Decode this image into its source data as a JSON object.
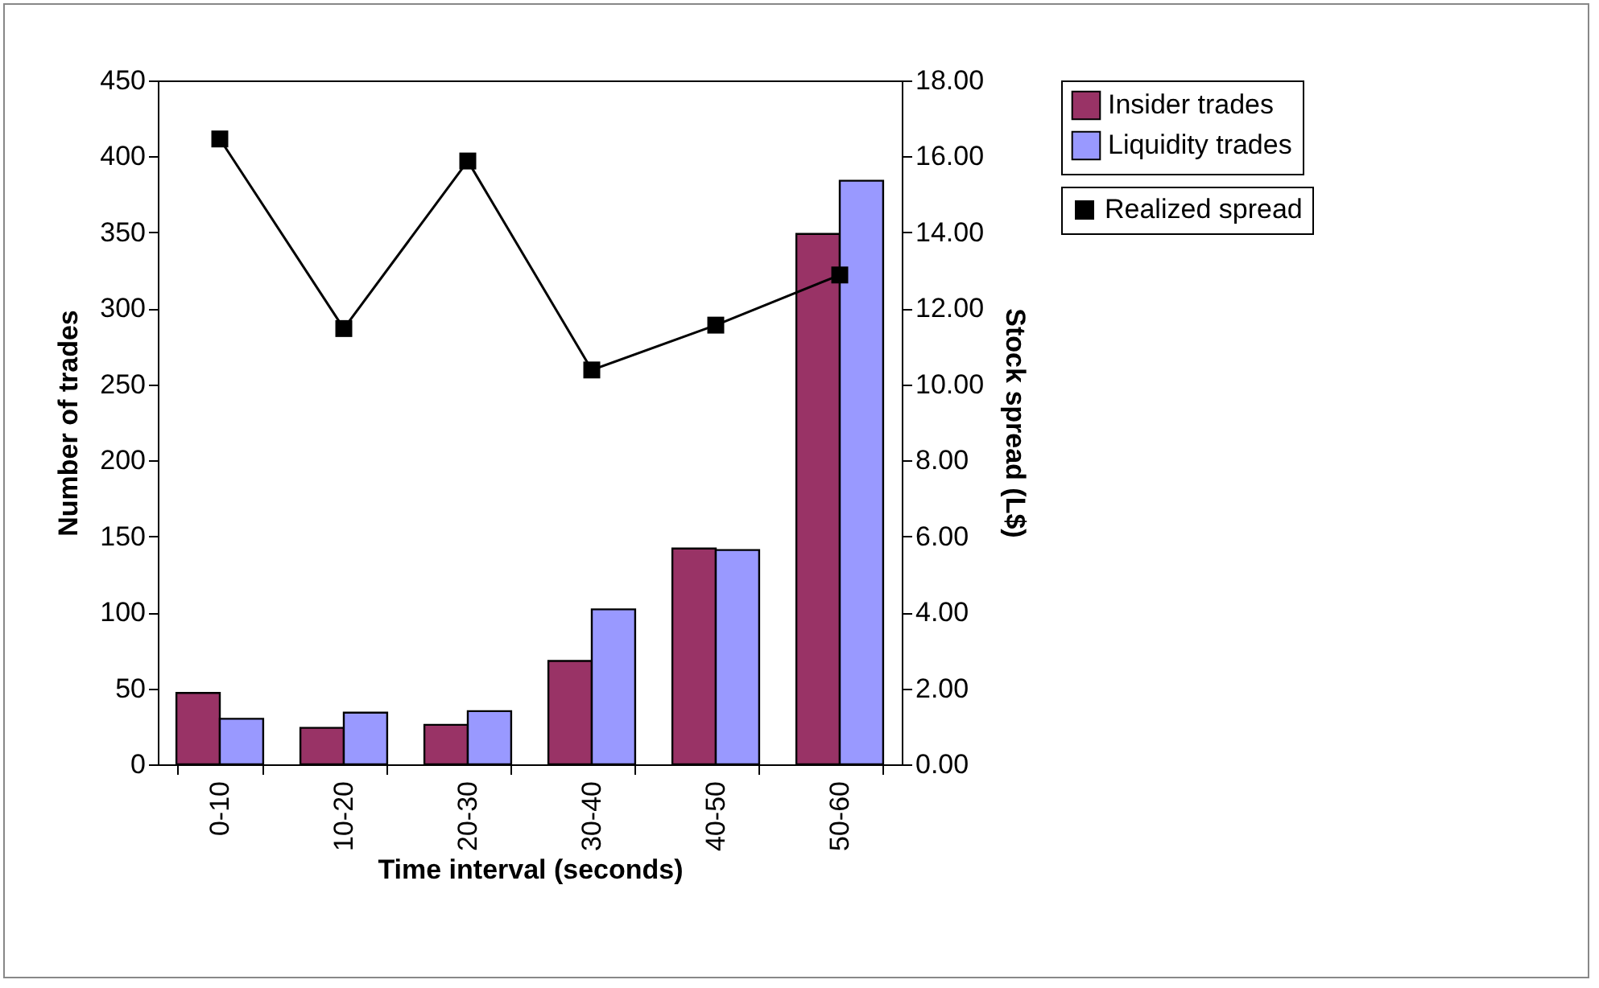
{
  "chart_data": {
    "type": "bar",
    "xlabel": "Time interval (seconds)",
    "ylabel": "Number of trades",
    "y2label": "Stock spread (L$)",
    "categories": [
      "0-10",
      "10-20",
      "20-30",
      "30-40",
      "40-50",
      "50-60"
    ],
    "series": [
      {
        "name": "Insider trades",
        "color": "#993366",
        "values": [
          47,
          24,
          26,
          68,
          142,
          349
        ]
      },
      {
        "name": "Liquidity trades",
        "color": "#9999ff",
        "values": [
          30,
          34,
          35,
          102,
          141,
          384
        ]
      },
      {
        "name": "Realized spread",
        "type": "line",
        "axis": "y2",
        "color": "#000000",
        "marker": "square",
        "values": [
          16.46,
          11.47,
          15.88,
          10.38,
          11.56,
          12.88
        ]
      }
    ],
    "ylim": [
      0,
      450
    ],
    "yticks": [
      0,
      50,
      100,
      150,
      200,
      250,
      300,
      350,
      400,
      450
    ],
    "y2lim": [
      0,
      18
    ],
    "y2ticks": [
      {
        "value": 0,
        "label": "0.00"
      },
      {
        "value": 2,
        "label": "2.00"
      },
      {
        "value": 4,
        "label": "4.00"
      },
      {
        "value": 6,
        "label": "6.00"
      },
      {
        "value": 8,
        "label": "8.00"
      },
      {
        "value": 10,
        "label": "10.00"
      },
      {
        "value": 12,
        "label": "12.00"
      },
      {
        "value": 14,
        "label": "14.00"
      },
      {
        "value": 16,
        "label": "16.00"
      },
      {
        "value": 18,
        "label": "18.00"
      }
    ],
    "legend": "right",
    "grid": false
  }
}
